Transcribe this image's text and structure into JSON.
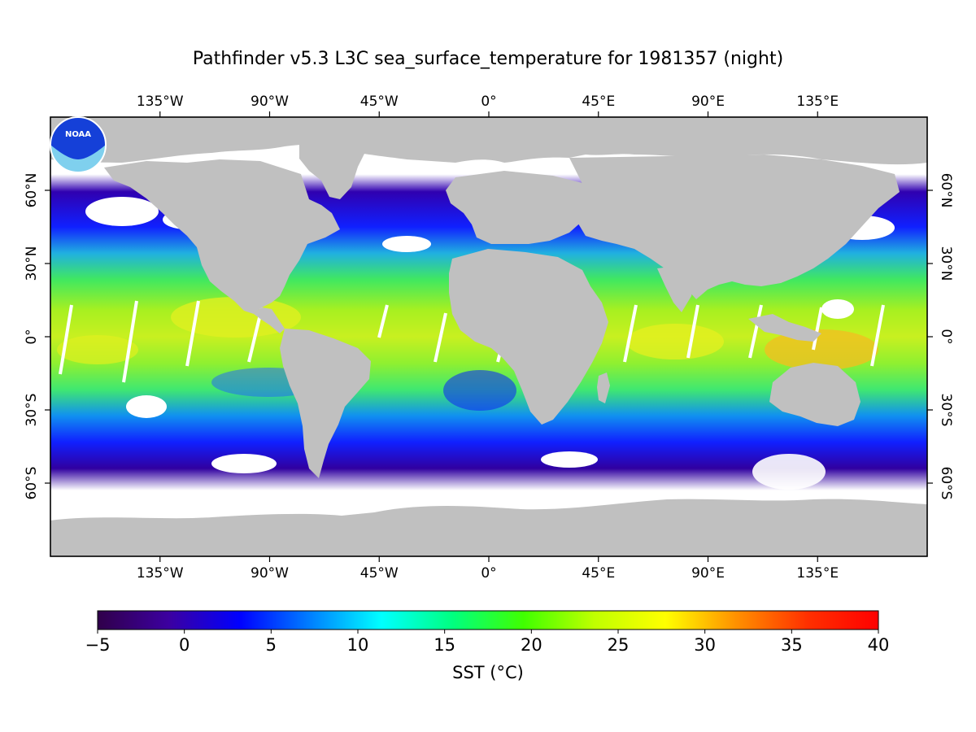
{
  "title": "Pathfinder v5.3 L3C sea_surface_temperature for 1981357 (night)",
  "logo": {
    "text": "NOAA",
    "icon": "noaa-logo-icon"
  },
  "map": {
    "projection": "equirectangular",
    "lon_range": [
      -180,
      180
    ],
    "lat_range": [
      -90,
      90
    ],
    "land_color": "#c0c0c0",
    "no_data_color": "#ffffff",
    "lon_ticks": [
      {
        "value": -135,
        "label": "135°W"
      },
      {
        "value": -90,
        "label": "90°W"
      },
      {
        "value": -45,
        "label": "45°W"
      },
      {
        "value": 0,
        "label": "0°"
      },
      {
        "value": 45,
        "label": "45°E"
      },
      {
        "value": 90,
        "label": "90°E"
      },
      {
        "value": 135,
        "label": "135°E"
      }
    ],
    "lat_ticks": [
      {
        "value": 60,
        "label": "60°N"
      },
      {
        "value": 30,
        "label": "30°N"
      },
      {
        "value": 0,
        "label": "0°"
      },
      {
        "value": -30,
        "label": "30°S"
      },
      {
        "value": -60,
        "label": "60°S"
      }
    ]
  },
  "colorbar": {
    "label": "SST (°C)",
    "min": -5,
    "max": 40,
    "ticks": [
      {
        "value": -5,
        "label": "−5"
      },
      {
        "value": 0,
        "label": "0"
      },
      {
        "value": 5,
        "label": "5"
      },
      {
        "value": 10,
        "label": "10"
      },
      {
        "value": 15,
        "label": "15"
      },
      {
        "value": 20,
        "label": "20"
      },
      {
        "value": 25,
        "label": "25"
      },
      {
        "value": 30,
        "label": "30"
      },
      {
        "value": 35,
        "label": "35"
      },
      {
        "value": 40,
        "label": "40"
      }
    ],
    "colormap": [
      "#30004a",
      "#3c00a0",
      "#0000ff",
      "#0080ff",
      "#00ffff",
      "#00ff80",
      "#40ff00",
      "#c0ff00",
      "#ffff00",
      "#ff9000",
      "#ff3000",
      "#ff0000"
    ]
  }
}
